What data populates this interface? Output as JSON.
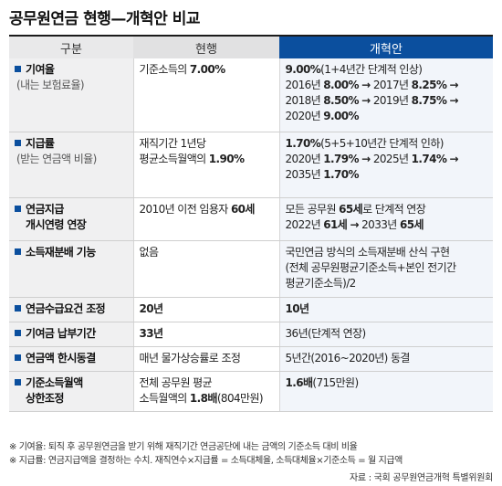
{
  "title": "공무원연금 현행—개혁안 비교",
  "headers": {
    "category": "구분",
    "current": "현행",
    "reform": "개혁안"
  },
  "rows": [
    {
      "name": "기여율",
      "sub": "(내는 보험료율)",
      "current": [
        "기준소득의 7.00%"
      ],
      "reform": [
        "9.00%(1+4년간 단계적 인상)",
        "2016년 8.00% → 2017년 8.25% →",
        "2018년 8.50% → 2019년 8.75% →",
        "2020년 9.00%"
      ]
    },
    {
      "name": "지급률",
      "sub": "(받는 연금액 비율)",
      "current": [
        "재직기간 1년당",
        "평균소득월액의 1.90%"
      ],
      "reform": [
        "1.70%(5+5+10년간 단계적 인하)",
        "2020년 1.79% → 2025년 1.74% →",
        "2035년 1.70%"
      ]
    },
    {
      "name": "연금지급",
      "name2": "개시연령 연장",
      "current": [
        "2010년 이전 임용자 60세"
      ],
      "reform": [
        "모든 공무원 65세로 단계적 연장",
        "2022년 61세 → 2033년 65세"
      ]
    },
    {
      "name": "소득재분배 기능",
      "current": [
        "없음"
      ],
      "reform": [
        "국민연금 방식의 소득재분배 산식 구현",
        "(전체 공무원평균기준소득+본인 전기간",
        "평균기준소득)/2"
      ]
    },
    {
      "name": "연금수급요건 조정",
      "current": [
        "20년"
      ],
      "reform": [
        "10년"
      ]
    },
    {
      "name": "기여금 납부기간",
      "current": [
        "33년"
      ],
      "reform": [
        "36년(단계적 연장)"
      ]
    },
    {
      "name": "연금액 한시동결",
      "current": [
        "매년 물가상승률로 조정"
      ],
      "reform": [
        "5년간(2016~2020년) 동결"
      ]
    },
    {
      "name": "기준소득월액",
      "name2": "상한조정",
      "current": [
        "전체 공무원 평균",
        "소득월액의 1.8배(804만원)"
      ],
      "reform": [
        "1.6배(715만원)"
      ]
    }
  ],
  "notes": [
    "※ 기여율: 퇴직 후 공무원연금을 받기 위해 재직기간 연금공단에 내는 금액의 기준소득 대비 비율",
    "※ 지급률: 연금지급액을 결정하는 수치. 재직연수×지급률 = 소득대체율, 소득대체율×기준소득 = 월 지급액"
  ],
  "source": "자료 : 국회 공무원연금개혁 특별위원회",
  "colors": {
    "accent": "#0b4f9e"
  }
}
